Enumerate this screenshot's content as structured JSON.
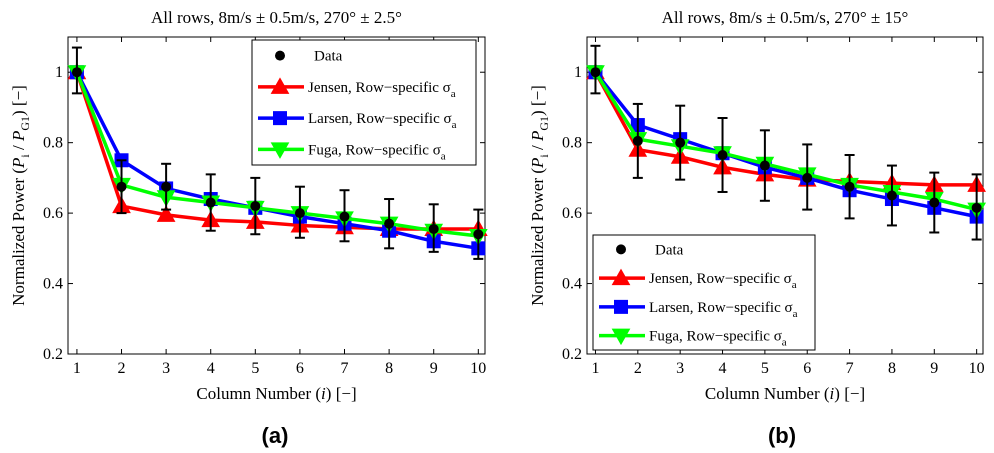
{
  "chart_data": [
    {
      "type": "line",
      "panel_label": "(a)",
      "title": "All rows, 8m/s ± 0.5m/s, 270° ± 2.5°",
      "xlabel": {
        "pre": "Column Number (",
        "var": "i",
        "post": ") [−]"
      },
      "ylabel": {
        "pre": "Normalized Power (",
        "p": "P",
        "sub_i": "i",
        "slash": " / ",
        "p2": "P",
        "sub_g": "G1",
        "post": ")  [−]"
      },
      "xlim": [
        0.8,
        10.15
      ],
      "ylim": [
        0.2,
        1.1
      ],
      "xticks": [
        1,
        2,
        3,
        4,
        5,
        6,
        7,
        8,
        9,
        10
      ],
      "yticks": [
        0.2,
        0.4,
        0.6,
        0.8,
        1
      ],
      "ytick_labels": [
        "0.2",
        "0.4",
        "0.6",
        "0.8",
        "1"
      ],
      "grid": false,
      "legend_position": "top-right",
      "x": [
        1,
        2,
        3,
        4,
        5,
        6,
        7,
        8,
        9,
        10
      ],
      "data": {
        "name": "Data",
        "values": [
          1.0,
          0.675,
          0.675,
          0.63,
          0.62,
          0.6,
          0.59,
          0.57,
          0.555,
          0.54
        ],
        "err_low": [
          0.94,
          0.6,
          0.61,
          0.55,
          0.54,
          0.53,
          0.52,
          0.5,
          0.49,
          0.47
        ],
        "err_high": [
          1.07,
          0.75,
          0.74,
          0.71,
          0.7,
          0.675,
          0.665,
          0.64,
          0.625,
          0.61
        ]
      },
      "series": [
        {
          "name": "Jensen, Row−specific σ",
          "sub": "a",
          "color": "#ff0000",
          "marker": "triangle-up",
          "values": [
            1.0,
            0.62,
            0.595,
            0.58,
            0.575,
            0.565,
            0.56,
            0.555,
            0.555,
            0.555
          ]
        },
        {
          "name": "Larsen, Row−specific σ",
          "sub": "a",
          "color": "#0000ff",
          "marker": "square",
          "values": [
            1.0,
            0.75,
            0.67,
            0.64,
            0.615,
            0.59,
            0.57,
            0.55,
            0.52,
            0.5
          ]
        },
        {
          "name": "Fuga, Row−specific σ",
          "sub": "a",
          "color": "#00ff00",
          "marker": "triangle-down",
          "values": [
            1.0,
            0.68,
            0.645,
            0.63,
            0.615,
            0.6,
            0.585,
            0.57,
            0.55,
            0.535
          ]
        }
      ]
    },
    {
      "type": "line",
      "panel_label": "(b)",
      "title": "All rows, 8m/s ± 0.5m/s, 270° ± 15°",
      "xlabel": {
        "pre": "Column Number (",
        "var": "i",
        "post": ") [−]"
      },
      "ylabel": {
        "pre": "Normalized Power (",
        "p": "P",
        "sub_i": "i",
        "slash": " / ",
        "p2": "P",
        "sub_g": "G1",
        "post": ")  [−]"
      },
      "xlim": [
        0.8,
        10.15
      ],
      "ylim": [
        0.2,
        1.1
      ],
      "xticks": [
        1,
        2,
        3,
        4,
        5,
        6,
        7,
        8,
        9,
        10
      ],
      "yticks": [
        0.2,
        0.4,
        0.6,
        0.8,
        1
      ],
      "ytick_labels": [
        "0.2",
        "0.4",
        "0.6",
        "0.8",
        "1"
      ],
      "grid": false,
      "legend_position": "bottom-left",
      "x": [
        1,
        2,
        3,
        4,
        5,
        6,
        7,
        8,
        9,
        10
      ],
      "data": {
        "name": "Data",
        "values": [
          1.0,
          0.805,
          0.8,
          0.765,
          0.735,
          0.7,
          0.675,
          0.65,
          0.63,
          0.615
        ],
        "err_low": [
          0.94,
          0.7,
          0.695,
          0.66,
          0.635,
          0.61,
          0.585,
          0.565,
          0.545,
          0.525
        ],
        "err_high": [
          1.075,
          0.91,
          0.905,
          0.87,
          0.835,
          0.795,
          0.765,
          0.735,
          0.715,
          0.71
        ]
      },
      "series": [
        {
          "name": "Jensen, Row−specific σ",
          "sub": "a",
          "color": "#ff0000",
          "marker": "triangle-up",
          "values": [
            1.0,
            0.78,
            0.76,
            0.73,
            0.71,
            0.695,
            0.69,
            0.685,
            0.68,
            0.68
          ]
        },
        {
          "name": "Larsen, Row−specific σ",
          "sub": "a",
          "color": "#0000ff",
          "marker": "square",
          "values": [
            1.0,
            0.85,
            0.81,
            0.77,
            0.73,
            0.7,
            0.665,
            0.64,
            0.615,
            0.59
          ]
        },
        {
          "name": "Fuga, Row−specific σ",
          "sub": "a",
          "color": "#00ff00",
          "marker": "triangle-down",
          "values": [
            1.0,
            0.81,
            0.79,
            0.77,
            0.74,
            0.71,
            0.68,
            0.66,
            0.64,
            0.61
          ]
        }
      ]
    }
  ]
}
